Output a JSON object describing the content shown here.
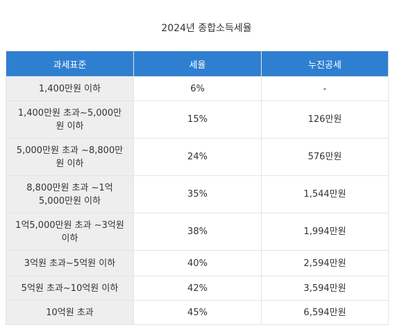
{
  "title": "2024년 종합소득세율",
  "table": {
    "headers": [
      "과세표준",
      "세율",
      "누진공세"
    ],
    "rows": [
      [
        "1,400만원 이하",
        "6%",
        "-"
      ],
      [
        "1,400만원 초과~5,000만원 이하",
        "15%",
        "126만원"
      ],
      [
        "5,000만원 초과 ~8,800만원 이하",
        "24%",
        "576만원"
      ],
      [
        "8,800만원 초과 ~1억 5,000만원 이하",
        "35%",
        "1,544만원"
      ],
      [
        "1억5,000만원 초과 ~3억원 이하",
        "38%",
        "1,994만원"
      ],
      [
        "3억원 초과~5억원 이하",
        "40%",
        "2,594만원"
      ],
      [
        "5억원 초과~10억원 이하",
        "42%",
        "3,594만원"
      ],
      [
        "10억원 초과",
        "45%",
        "6,594만원"
      ]
    ]
  }
}
